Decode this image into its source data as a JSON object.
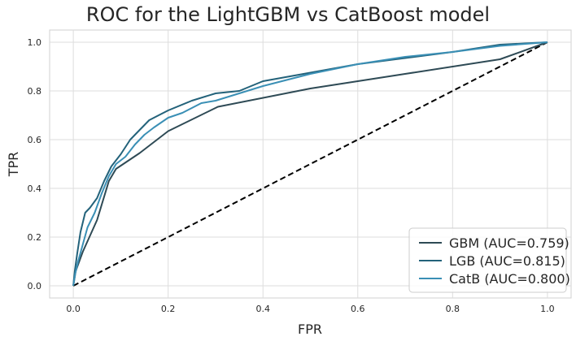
{
  "chart_data": {
    "type": "line",
    "title": "ROC for the LightGBM vs CatBoost model",
    "xlabel": "FPR",
    "ylabel": "TPR",
    "xlim": [
      -0.05,
      1.05
    ],
    "ylim": [
      -0.05,
      1.05
    ],
    "xticks": [
      "0.0",
      "0.2",
      "0.4",
      "0.6",
      "0.8",
      "1.0"
    ],
    "yticks": [
      "0.0",
      "0.2",
      "0.4",
      "0.6",
      "0.8",
      "1.0"
    ],
    "grid": true,
    "legend_position": "bottom-right",
    "series": [
      {
        "name": "GBM (AUC=0.759)",
        "color": "#2e4a55",
        "x": [
          0.0,
          0.005,
          0.02,
          0.05,
          0.075,
          0.09,
          0.14,
          0.2,
          0.305,
          0.5,
          0.7,
          0.9,
          1.0
        ],
        "y": [
          0.0,
          0.06,
          0.14,
          0.27,
          0.43,
          0.48,
          0.545,
          0.635,
          0.735,
          0.81,
          0.87,
          0.93,
          1.0
        ]
      },
      {
        "name": "LGB (AUC=0.815)",
        "color": "#23627a",
        "x": [
          0.0,
          0.003,
          0.008,
          0.015,
          0.025,
          0.035,
          0.05,
          0.065,
          0.08,
          0.1,
          0.12,
          0.14,
          0.16,
          0.18,
          0.2,
          0.25,
          0.3,
          0.35,
          0.4,
          0.5,
          0.6,
          0.7,
          0.8,
          0.9,
          1.0
        ],
        "y": [
          0.0,
          0.06,
          0.13,
          0.22,
          0.3,
          0.32,
          0.36,
          0.43,
          0.49,
          0.54,
          0.6,
          0.64,
          0.68,
          0.7,
          0.72,
          0.76,
          0.79,
          0.8,
          0.84,
          0.875,
          0.91,
          0.935,
          0.96,
          0.99,
          1.0
        ]
      },
      {
        "name": "CatB (AUC=0.800)",
        "color": "#3a8fb5",
        "x": [
          0.0,
          0.004,
          0.01,
          0.02,
          0.03,
          0.045,
          0.06,
          0.075,
          0.09,
          0.11,
          0.13,
          0.15,
          0.17,
          0.2,
          0.23,
          0.27,
          0.3,
          0.35,
          0.4,
          0.5,
          0.6,
          0.7,
          0.8,
          0.9,
          1.0
        ],
        "y": [
          0.0,
          0.05,
          0.1,
          0.17,
          0.24,
          0.3,
          0.38,
          0.45,
          0.5,
          0.53,
          0.58,
          0.62,
          0.65,
          0.69,
          0.71,
          0.75,
          0.76,
          0.79,
          0.82,
          0.87,
          0.91,
          0.94,
          0.96,
          0.985,
          1.0
        ]
      }
    ],
    "reference_line": {
      "x": [
        0,
        1
      ],
      "y": [
        0,
        1
      ],
      "color": "#000000",
      "style": "dashed"
    }
  }
}
